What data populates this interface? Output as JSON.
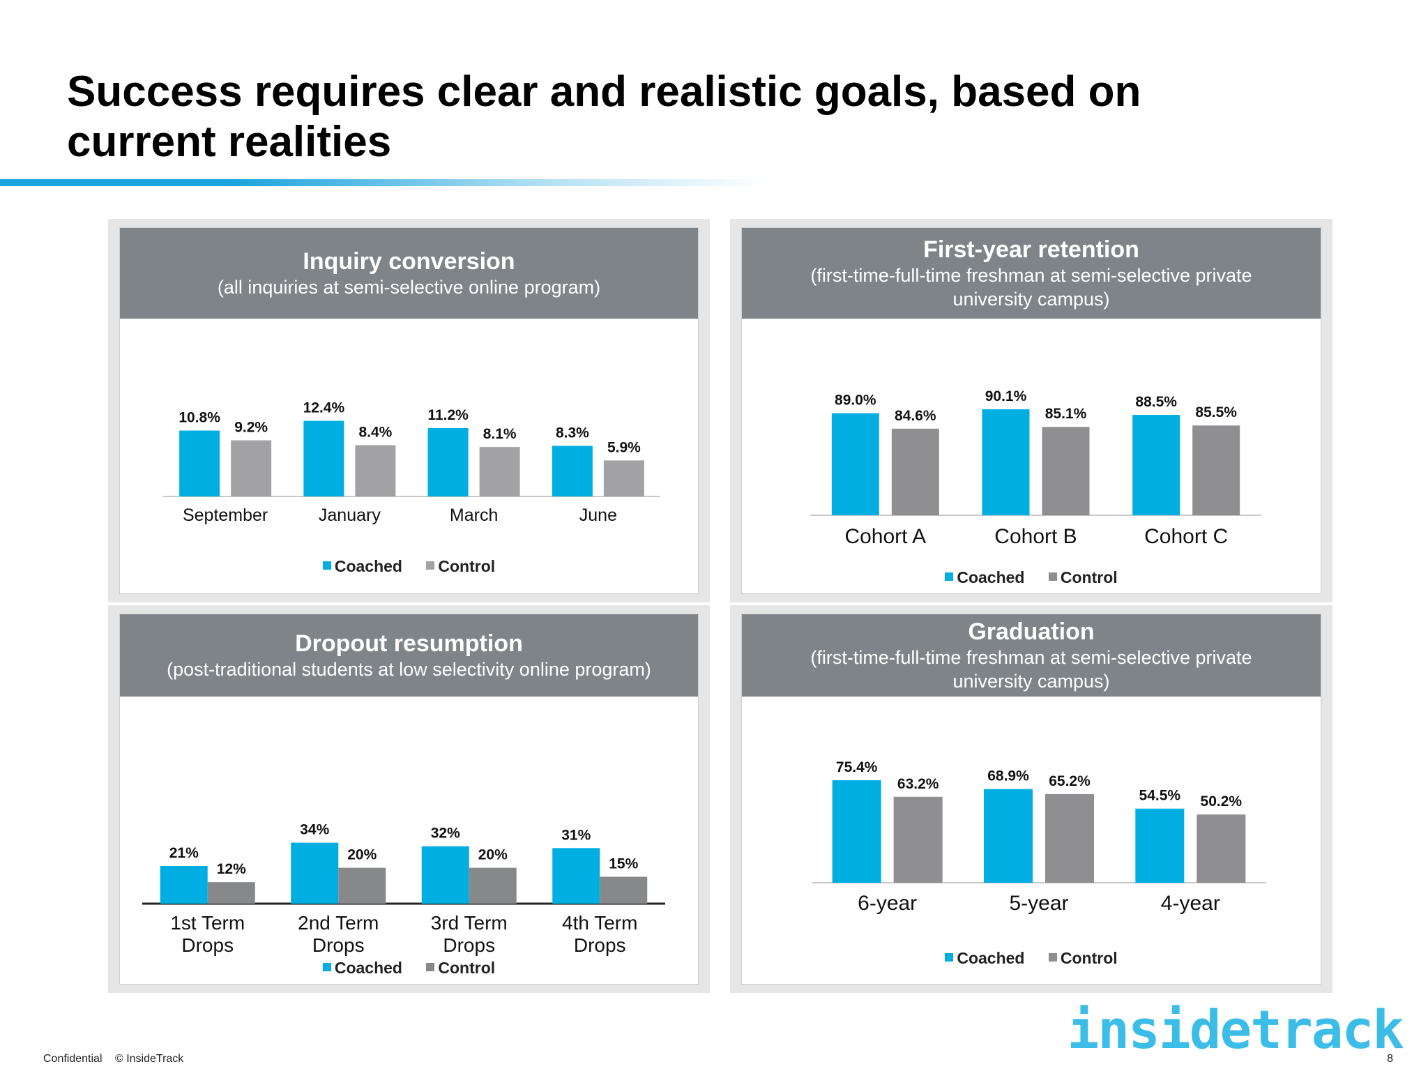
{
  "slide": {
    "title": "Success requires clear and realistic goals, based on current realities",
    "footer_confidential": "Confidential",
    "footer_copyright": "© InsideTrack",
    "page_number": "8",
    "logo_text": "insidetrack"
  },
  "colors": {
    "coached": "#00aee2",
    "control_light": "#a2a2a4",
    "control_dark": "#86888a",
    "header_bg": "#7f8489",
    "accent": "#1aa3dc"
  },
  "chart_data": [
    {
      "id": "inquiry",
      "type": "bar",
      "title": "Inquiry conversion",
      "subtitle": "(all inquiries at semi-selective online program)",
      "categories": [
        "September",
        "January",
        "March",
        "June"
      ],
      "series": [
        {
          "name": "Coached",
          "values": [
            10.8,
            12.4,
            11.2,
            8.3
          ],
          "labels": [
            "10.8%",
            "12.4%",
            "11.2%",
            "8.3%"
          ]
        },
        {
          "name": "Control",
          "values": [
            9.2,
            8.4,
            8.1,
            5.9
          ],
          "labels": [
            "9.2%",
            "8.4%",
            "8.1%",
            "5.9%"
          ]
        }
      ],
      "ylim": [
        0,
        20
      ],
      "grid": false,
      "legend": "bottom"
    },
    {
      "id": "retention",
      "type": "bar",
      "title": "First-year retention",
      "subtitle": "(first-time-full-time freshman at semi-selective private university campus)",
      "categories": [
        "Cohort A",
        "Cohort B",
        "Cohort C"
      ],
      "series": [
        {
          "name": "Coached",
          "values": [
            89.0,
            90.1,
            88.5
          ],
          "labels": [
            "89.0%",
            "90.1%",
            "88.5%"
          ]
        },
        {
          "name": "Control",
          "values": [
            84.6,
            85.1,
            85.5
          ],
          "labels": [
            "84.6%",
            "85.1%",
            "85.5%"
          ]
        }
      ],
      "ylim": [
        60,
        100
      ],
      "grid": false,
      "legend": "bottom"
    },
    {
      "id": "dropout",
      "type": "bar",
      "title": "Dropout resumption",
      "subtitle": "(post-traditional students at low selectivity online program)",
      "categories": [
        "1st Term Drops",
        "2nd Term Drops",
        "3rd Term Drops",
        "4th Term Drops"
      ],
      "series": [
        {
          "name": "Coached",
          "values": [
            21,
            34,
            32,
            31
          ],
          "labels": [
            "21%",
            "34%",
            "32%",
            "31%"
          ]
        },
        {
          "name": "Control",
          "values": [
            12,
            20,
            20,
            15
          ],
          "labels": [
            "12%",
            "20%",
            "20%",
            "15%"
          ]
        }
      ],
      "ylim": [
        0,
        70
      ],
      "grid": false,
      "legend": "bottom"
    },
    {
      "id": "graduation",
      "type": "bar",
      "title": "Graduation",
      "subtitle": "(first-time-full-time freshman at semi-selective private university campus)",
      "categories": [
        "6-year",
        "5-year",
        "4-year"
      ],
      "series": [
        {
          "name": "Coached",
          "values": [
            75.4,
            68.9,
            54.5
          ],
          "labels": [
            "75.4%",
            "68.9%",
            "54.5%"
          ]
        },
        {
          "name": "Control",
          "values": [
            63.2,
            65.2,
            50.2
          ],
          "labels": [
            "63.2%",
            "65.2%",
            "50.2%"
          ]
        }
      ],
      "ylim": [
        0,
        100
      ],
      "grid": false,
      "legend": "bottom"
    }
  ]
}
